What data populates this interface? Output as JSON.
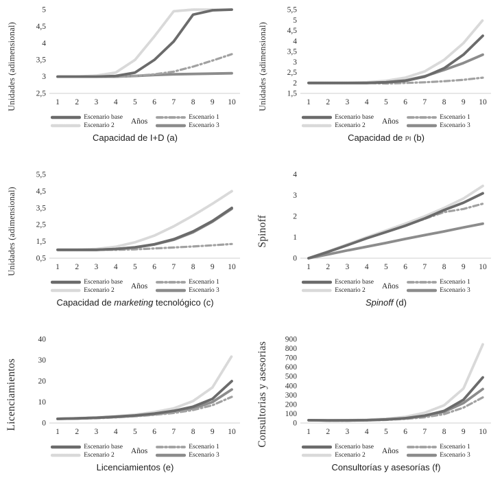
{
  "page": {
    "background": "#ffffff"
  },
  "legend": {
    "x_axis_label": "Años",
    "items": [
      {
        "key": "base",
        "label": "Escenario base",
        "color": "#6b6b6b",
        "dash": "none",
        "width": 3.8
      },
      {
        "key": "esc1",
        "label": "Escenario 1",
        "color": "#a1a1a1",
        "dash": "8 4 2 4",
        "width": 3.2
      },
      {
        "key": "esc2",
        "label": "Escenario 2",
        "color": "#d9d9d9",
        "dash": "2 1.4",
        "width": 3.8
      },
      {
        "key": "esc3",
        "label": "Escenario 3",
        "color": "#8c8c8c",
        "dash": "none",
        "width": 3.8
      }
    ]
  },
  "chart_data": [
    {
      "type": "line",
      "panel": "a",
      "title": {
        "pre": "Capacidad de I+D (a)",
        "em": "",
        "post": ""
      },
      "y_label": "Unidades (adimensional)",
      "x_label": "Años",
      "x": [
        1,
        2,
        3,
        4,
        5,
        6,
        7,
        8,
        9,
        10
      ],
      "ylim": [
        2.5,
        5
      ],
      "ytick_values": [
        2.5,
        3,
        3.5,
        4,
        4.5,
        5
      ],
      "ytick_labels": [
        "2,5",
        "3",
        "3,5",
        "4",
        "4,5",
        "5"
      ],
      "legend_position": "bottom",
      "grid": false,
      "series": [
        {
          "name": "Escenario base",
          "values": [
            3,
            3,
            3,
            3.02,
            3.12,
            3.5,
            4.05,
            4.85,
            4.98,
            5
          ]
        },
        {
          "name": "Escenario 1",
          "values": [
            3,
            3,
            3,
            3,
            3.02,
            3.07,
            3.15,
            3.3,
            3.48,
            3.67
          ]
        },
        {
          "name": "Escenario 2",
          "values": [
            3,
            3,
            3.03,
            3.12,
            3.5,
            4.2,
            4.95,
            5,
            5,
            5
          ]
        },
        {
          "name": "Escenario 3",
          "values": [
            3,
            3,
            3,
            3,
            3.02,
            3.05,
            3.07,
            3.08,
            3.09,
            3.1
          ]
        }
      ]
    },
    {
      "type": "line",
      "panel": "b",
      "title": {
        "pre": "Capacidad de ",
        "em": "pi",
        "post": " (b)"
      },
      "y_label": "Unidades (adimensional)",
      "x_label": "Años",
      "x": [
        1,
        2,
        3,
        4,
        5,
        6,
        7,
        8,
        9,
        10
      ],
      "ylim": [
        1.5,
        5.5
      ],
      "ytick_values": [
        1.5,
        2,
        2.5,
        3,
        3.5,
        4,
        4.5,
        5,
        5.5
      ],
      "ytick_labels": [
        "1,5",
        "2",
        "2,5",
        "3",
        "3,5",
        "4",
        "4,5",
        "5",
        "5,5"
      ],
      "legend_position": "bottom",
      "grid": false,
      "series": [
        {
          "name": "Escenario base",
          "values": [
            2,
            2,
            2,
            2,
            2.03,
            2.1,
            2.3,
            2.7,
            3.35,
            4.25
          ]
        },
        {
          "name": "Escenario 1",
          "values": [
            2,
            2,
            2,
            2,
            1.97,
            2,
            2.03,
            2.08,
            2.15,
            2.25
          ]
        },
        {
          "name": "Escenario 2",
          "values": [
            2,
            2,
            2,
            2.03,
            2.1,
            2.25,
            2.55,
            3.1,
            3.9,
            5
          ]
        },
        {
          "name": "Escenario 3",
          "values": [
            2,
            2,
            2,
            2,
            2.03,
            2.12,
            2.32,
            2.62,
            2.95,
            3.35
          ]
        }
      ]
    },
    {
      "type": "line",
      "panel": "c",
      "title": {
        "pre": "Capacidad de ",
        "em": "marketing",
        "post": " tecnológico (c)"
      },
      "y_label": "Unidades (adimensional)",
      "x_label": "Años",
      "x": [
        1,
        2,
        3,
        4,
        5,
        6,
        7,
        8,
        9,
        10
      ],
      "ylim": [
        0.5,
        5.5
      ],
      "ytick_values": [
        0.5,
        1.5,
        2.5,
        3.5,
        4.5,
        5.5
      ],
      "ytick_labels": [
        "0,5",
        "1,5",
        "2,5",
        "3,5",
        "4,5",
        "5,5"
      ],
      "legend_position": "bottom",
      "grid": false,
      "series": [
        {
          "name": "Escenario base",
          "values": [
            1,
            1,
            1,
            1.05,
            1.15,
            1.33,
            1.63,
            2.1,
            2.72,
            3.5
          ]
        },
        {
          "name": "Escenario 1",
          "values": [
            1,
            1,
            1,
            1,
            1.03,
            1.08,
            1.14,
            1.2,
            1.27,
            1.35
          ]
        },
        {
          "name": "Escenario 2",
          "values": [
            1,
            1,
            1.05,
            1.18,
            1.45,
            1.85,
            2.4,
            3.05,
            3.75,
            4.5
          ]
        },
        {
          "name": "Escenario 3",
          "values": [
            1,
            1,
            1,
            1.05,
            1.14,
            1.32,
            1.6,
            2.05,
            2.68,
            3.45
          ]
        }
      ]
    },
    {
      "type": "line",
      "panel": "d",
      "title": {
        "pre": "",
        "em": "Spinoff",
        "post": " (d)"
      },
      "y_label": "Spinoff",
      "x_label": "Años",
      "x": [
        1,
        2,
        3,
        4,
        5,
        6,
        7,
        8,
        9,
        10
      ],
      "ylim": [
        0,
        4
      ],
      "ytick_values": [
        0,
        1,
        2,
        3,
        4
      ],
      "ytick_labels": [
        "0",
        "1",
        "2",
        "3",
        "4"
      ],
      "legend_position": "bottom",
      "grid": false,
      "series": [
        {
          "name": "Escenario base",
          "values": [
            0,
            0.3,
            0.62,
            0.95,
            1.25,
            1.55,
            1.9,
            2.3,
            2.65,
            3.1
          ]
        },
        {
          "name": "Escenario 1",
          "values": [
            0,
            0.3,
            0.62,
            0.95,
            1.25,
            1.55,
            1.88,
            2.2,
            2.35,
            2.6
          ]
        },
        {
          "name": "Escenario 2",
          "values": [
            0,
            0.32,
            0.66,
            1,
            1.32,
            1.65,
            2,
            2.4,
            2.85,
            3.45
          ]
        },
        {
          "name": "Escenario 3",
          "values": [
            0,
            0.18,
            0.37,
            0.55,
            0.73,
            0.92,
            1.1,
            1.28,
            1.47,
            1.65
          ]
        }
      ]
    },
    {
      "type": "line",
      "panel": "e",
      "title": {
        "pre": "Licenciamientos (e)",
        "em": "",
        "post": ""
      },
      "y_label": "Licenciamientos",
      "x_label": "Años",
      "x": [
        1,
        2,
        3,
        4,
        5,
        6,
        7,
        8,
        9,
        10
      ],
      "ylim": [
        0,
        40
      ],
      "ytick_values": [
        0,
        10,
        20,
        30,
        40
      ],
      "ytick_labels": [
        "0",
        "10",
        "20",
        "30",
        "40"
      ],
      "legend_position": "bottom",
      "grid": false,
      "series": [
        {
          "name": "Escenario base",
          "values": [
            2,
            2.2,
            2.5,
            3,
            3.6,
            4.5,
            5.8,
            7.8,
            11.5,
            20
          ]
        },
        {
          "name": "Escenario 1",
          "values": [
            2,
            2.1,
            2.3,
            2.7,
            3.2,
            3.9,
            4.8,
            6.2,
            8.5,
            12.5
          ]
        },
        {
          "name": "Escenario 2",
          "values": [
            2,
            2.3,
            2.7,
            3.2,
            4,
            5.2,
            7,
            10.5,
            17,
            32
          ]
        },
        {
          "name": "Escenario 3",
          "values": [
            2,
            2.2,
            2.5,
            2.9,
            3.4,
            4.2,
            5.4,
            7,
            10,
            16
          ]
        }
      ]
    },
    {
      "type": "line",
      "panel": "f",
      "title": {
        "pre": "Consultorías y asesorías (f)",
        "em": "",
        "post": ""
      },
      "y_label": "Consultorias y asesorias",
      "x_label": "Años",
      "x": [
        1,
        2,
        3,
        4,
        5,
        6,
        7,
        8,
        9,
        10
      ],
      "ylim": [
        0,
        900
      ],
      "ytick_values": [
        0,
        100,
        200,
        300,
        400,
        500,
        600,
        700,
        800,
        900
      ],
      "ytick_labels": [
        "0",
        "100",
        "200",
        "300",
        "400",
        "500",
        "600",
        "700",
        "800",
        "900"
      ],
      "legend_position": "bottom",
      "grid": false,
      "series": [
        {
          "name": "Escenario base",
          "values": [
            30,
            28,
            28,
            30,
            38,
            52,
            80,
            130,
            250,
            490
          ]
        },
        {
          "name": "Escenario 1",
          "values": [
            28,
            25,
            25,
            27,
            33,
            44,
            62,
            95,
            165,
            275
          ]
        },
        {
          "name": "Escenario 2",
          "values": [
            30,
            29,
            30,
            35,
            46,
            66,
            110,
            190,
            370,
            845
          ]
        },
        {
          "name": "Escenario 3",
          "values": [
            30,
            27,
            28,
            30,
            37,
            50,
            75,
            120,
            215,
            365
          ]
        }
      ]
    }
  ]
}
